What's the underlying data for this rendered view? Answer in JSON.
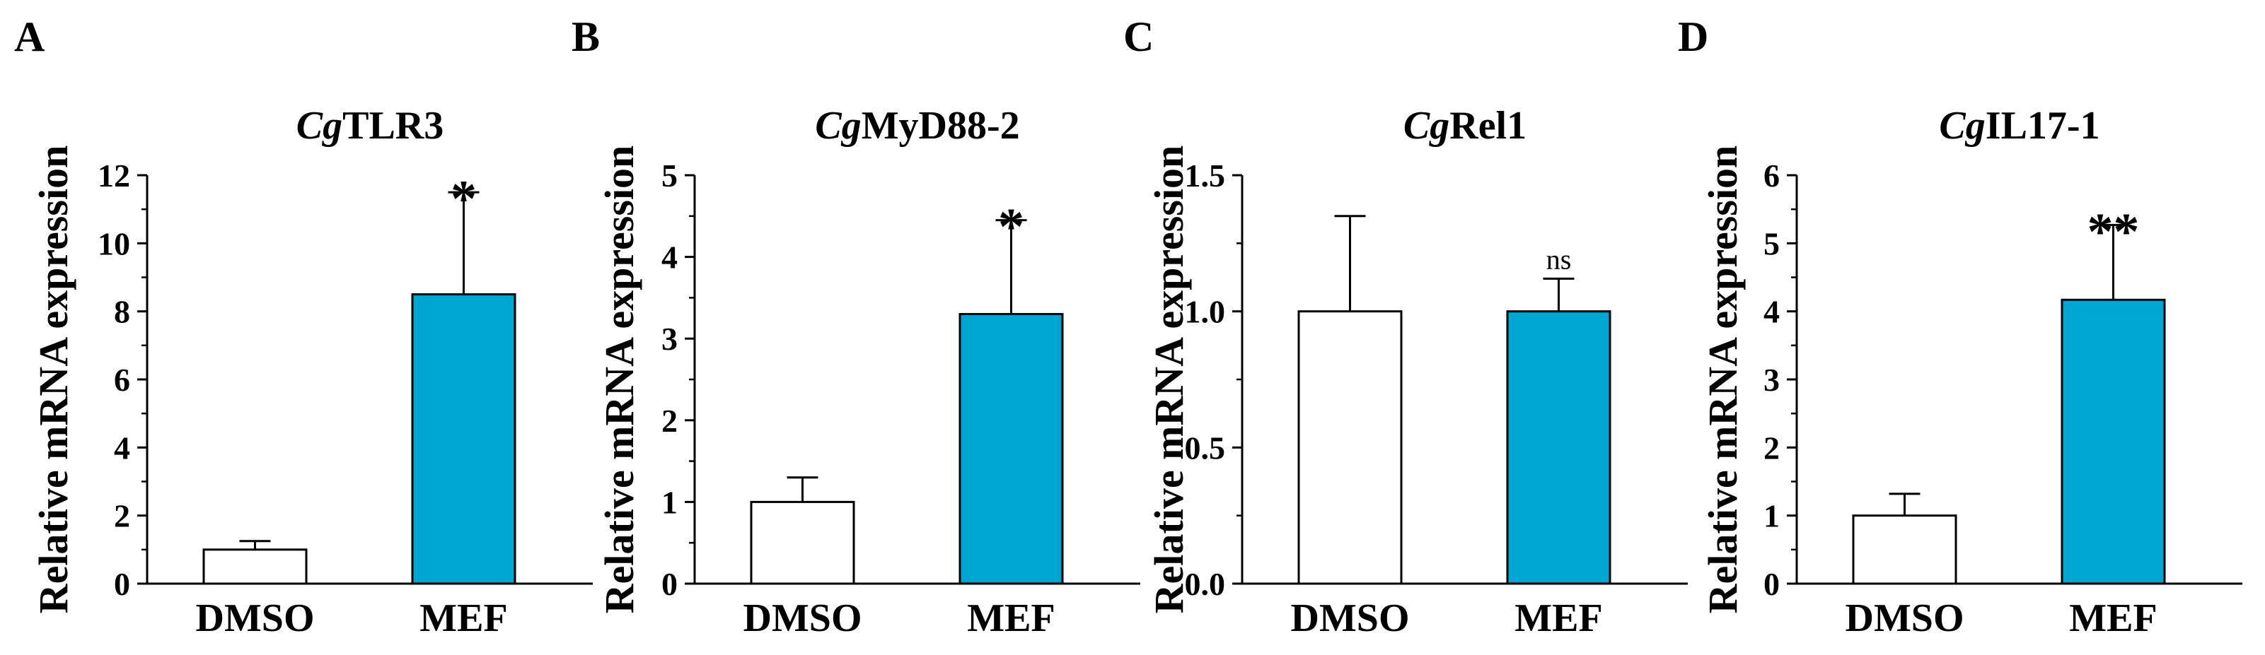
{
  "colors": {
    "dmso_fill": "#ffffff",
    "mef_fill": "#00a6d2",
    "axis": "#000000"
  },
  "chart_data": [
    {
      "panel": "A",
      "type": "bar",
      "title_prefix": "Cg",
      "title_suffix": "TLR3",
      "ylabel": "Relative mRNA expression",
      "categories": [
        "DMSO",
        "MEF"
      ],
      "values": [
        1.0,
        8.5
      ],
      "errors": [
        0.25,
        3.0
      ],
      "significance": [
        "",
        "*"
      ],
      "ylim": [
        0,
        12
      ],
      "yticks": [
        "0",
        "2",
        "4",
        "6",
        "8",
        "10",
        "12"
      ]
    },
    {
      "panel": "B",
      "type": "bar",
      "title_prefix": "Cg",
      "title_suffix": "MyD88-2",
      "ylabel": "Relative mRNA expression",
      "categories": [
        "DMSO",
        "MEF"
      ],
      "values": [
        1.0,
        3.3
      ],
      "errors": [
        0.3,
        1.15
      ],
      "significance": [
        "",
        "*"
      ],
      "ylim": [
        0,
        5
      ],
      "yticks": [
        "0",
        "1",
        "2",
        "3",
        "4",
        "5"
      ]
    },
    {
      "panel": "C",
      "type": "bar",
      "title_prefix": "Cg",
      "title_suffix": "Rel1",
      "ylabel": "Relative mRNA expression",
      "categories": [
        "DMSO",
        "MEF"
      ],
      "values": [
        1.0,
        1.0
      ],
      "errors": [
        0.35,
        0.12
      ],
      "significance": [
        "",
        "ns"
      ],
      "ylim": [
        0,
        1.5
      ],
      "yticks": [
        "0.0",
        "0.5",
        "1.0",
        "1.5"
      ]
    },
    {
      "panel": "D",
      "type": "bar",
      "title_prefix": "Cg",
      "title_suffix": "IL17-1",
      "ylabel": "Relative mRNA expression",
      "categories": [
        "DMSO",
        "MEF"
      ],
      "values": [
        1.0,
        4.17
      ],
      "errors": [
        0.32,
        1.1
      ],
      "significance": [
        "",
        "**"
      ],
      "ylim": [
        0,
        6
      ],
      "yticks": [
        "0",
        "1",
        "2",
        "3",
        "4",
        "5",
        "6"
      ]
    }
  ]
}
